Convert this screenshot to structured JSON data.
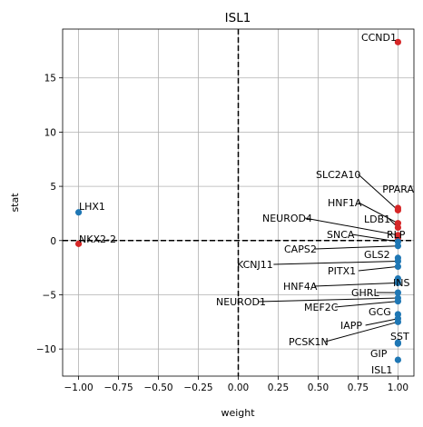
{
  "chart_data": {
    "type": "scatter",
    "title": "ISL1",
    "xlabel": "weight",
    "ylabel": "stat",
    "xlim": [
      -1.1,
      1.1
    ],
    "ylim": [
      -12.5,
      19.5
    ],
    "xticks": [
      -1.0,
      -0.75,
      -0.5,
      -0.25,
      0.0,
      0.25,
      0.5,
      0.75,
      1.0
    ],
    "xtick_labels": [
      "−1.00",
      "−0.75",
      "−0.50",
      "−0.25",
      "0.00",
      "0.25",
      "0.50",
      "0.75",
      "1.00"
    ],
    "yticks": [
      -10,
      -5,
      0,
      5,
      10,
      15
    ],
    "ytick_labels": [
      "−10",
      "−5",
      "0",
      "5",
      "10",
      "15"
    ],
    "grid": true,
    "reference_lines": {
      "x": 0,
      "y": 0
    },
    "colors": {
      "positive": "#d62728",
      "negative": "#1f77b4",
      "reference": "#000000",
      "grid": "#b0b0b0"
    },
    "points": [
      {
        "label": "CCND1",
        "x": 1.0,
        "y": 18.3,
        "sign": "positive"
      },
      {
        "label": "LHX1",
        "x": -1.0,
        "y": 2.6,
        "sign": "negative"
      },
      {
        "label": "NKX2-2",
        "x": -1.0,
        "y": -0.3,
        "sign": "positive"
      },
      {
        "label": "PPARA",
        "x": 1.0,
        "y": 3.0,
        "sign": "positive"
      },
      {
        "label": "SLC2A10",
        "x": 1.0,
        "y": 2.8,
        "sign": "positive"
      },
      {
        "label": "HNF1A",
        "x": 1.0,
        "y": 1.6,
        "sign": "positive"
      },
      {
        "label": "LDB1",
        "x": 1.0,
        "y": 1.2,
        "sign": "positive"
      },
      {
        "label": "NEUROD4",
        "x": 1.0,
        "y": 0.5,
        "sign": "positive"
      },
      {
        "label": "RLP",
        "x": 1.0,
        "y": 0.2,
        "sign": "positive"
      },
      {
        "label": "SNCA",
        "x": 1.0,
        "y": -0.1,
        "sign": "negative"
      },
      {
        "label": "CAPS2",
        "x": 1.0,
        "y": -0.5,
        "sign": "negative"
      },
      {
        "label": "GLS2",
        "x": 1.0,
        "y": -1.6,
        "sign": "negative"
      },
      {
        "label": "KCNJ11",
        "x": 1.0,
        "y": -1.9,
        "sign": "negative"
      },
      {
        "label": "PITX1",
        "x": 1.0,
        "y": -2.4,
        "sign": "negative"
      },
      {
        "label": "INS",
        "x": 1.0,
        "y": -3.5,
        "sign": "negative"
      },
      {
        "label": "HNF4A",
        "x": 1.0,
        "y": -3.9,
        "sign": "negative"
      },
      {
        "label": "GHRL",
        "x": 1.0,
        "y": -4.8,
        "sign": "negative"
      },
      {
        "label": "NEUROD1",
        "x": 1.0,
        "y": -5.3,
        "sign": "negative"
      },
      {
        "label": "MEF2C",
        "x": 1.0,
        "y": -5.6,
        "sign": "negative"
      },
      {
        "label": "GCG",
        "x": 1.0,
        "y": -6.8,
        "sign": "negative"
      },
      {
        "label": "IAPP",
        "x": 1.0,
        "y": -7.2,
        "sign": "negative"
      },
      {
        "label": "PCSK1N",
        "x": 1.0,
        "y": -7.5,
        "sign": "negative"
      },
      {
        "label": "SST",
        "x": 1.0,
        "y": -9.4,
        "sign": "negative"
      },
      {
        "label": "GIP",
        "x": 1.0,
        "y": -9.5,
        "sign": "negative"
      },
      {
        "label": "ISL1",
        "x": 1.0,
        "y": -11.0,
        "sign": "negative"
      }
    ]
  }
}
